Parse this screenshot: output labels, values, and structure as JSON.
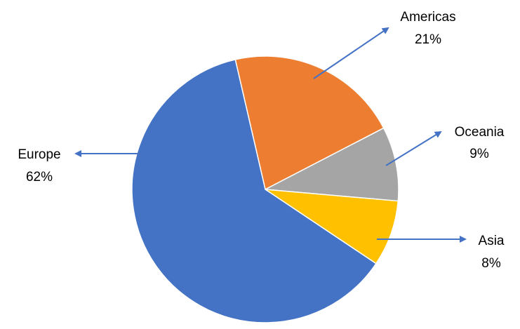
{
  "chart_data": {
    "type": "pie",
    "title": "",
    "legend": "none",
    "data_labels": "outside-with-arrows",
    "start_angle_deg": -13,
    "slices": [
      {
        "name": "Americas",
        "value": 21,
        "label": "21%",
        "color": "#ED7D31"
      },
      {
        "name": "Oceania",
        "value": 9,
        "label": "9%",
        "color": "#A5A5A5"
      },
      {
        "name": "Asia",
        "value": 8,
        "label": "8%",
        "color": "#FFC000"
      },
      {
        "name": "Europe",
        "value": 62,
        "label": "62%",
        "color": "#4472C4"
      }
    ],
    "arrow_color": "#4472C4"
  }
}
